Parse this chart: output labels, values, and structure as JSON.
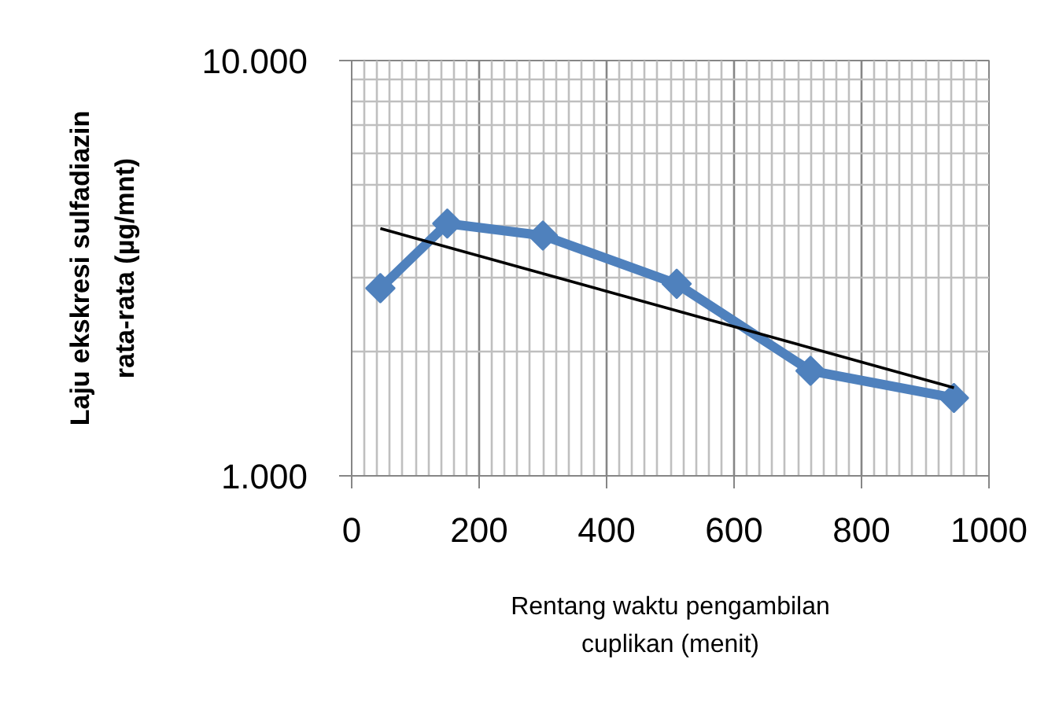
{
  "chart_data": {
    "type": "line",
    "xlabel": "Rentang waktu pengambilan\ncuplikan (menit)",
    "ylabel": "Laju ekskresi sulfadiazin\nrata-rata (µg/mnt)",
    "x": [
      45,
      150,
      300,
      510,
      720,
      945
    ],
    "series": [
      {
        "color": "#4f81bd",
        "values": [
          2830,
          4050,
          3790,
          2900,
          1790,
          1540
        ]
      },
      {
        "type": "line",
        "x": [
          45,
          945
        ],
        "color": "#000000",
        "values": [
          3940,
          1630
        ],
        "marker": "none"
      }
    ],
    "marker": "diamond",
    "log": "y",
    "xlim": [
      0,
      1000
    ],
    "ylim": [
      1000,
      10000
    ],
    "xticks": [
      0,
      200,
      400,
      600,
      800,
      1000
    ],
    "yticks": [
      {
        "value": 1000,
        "label": "1.000"
      },
      {
        "value": 10000,
        "label": "10.000"
      }
    ],
    "grid": true
  }
}
